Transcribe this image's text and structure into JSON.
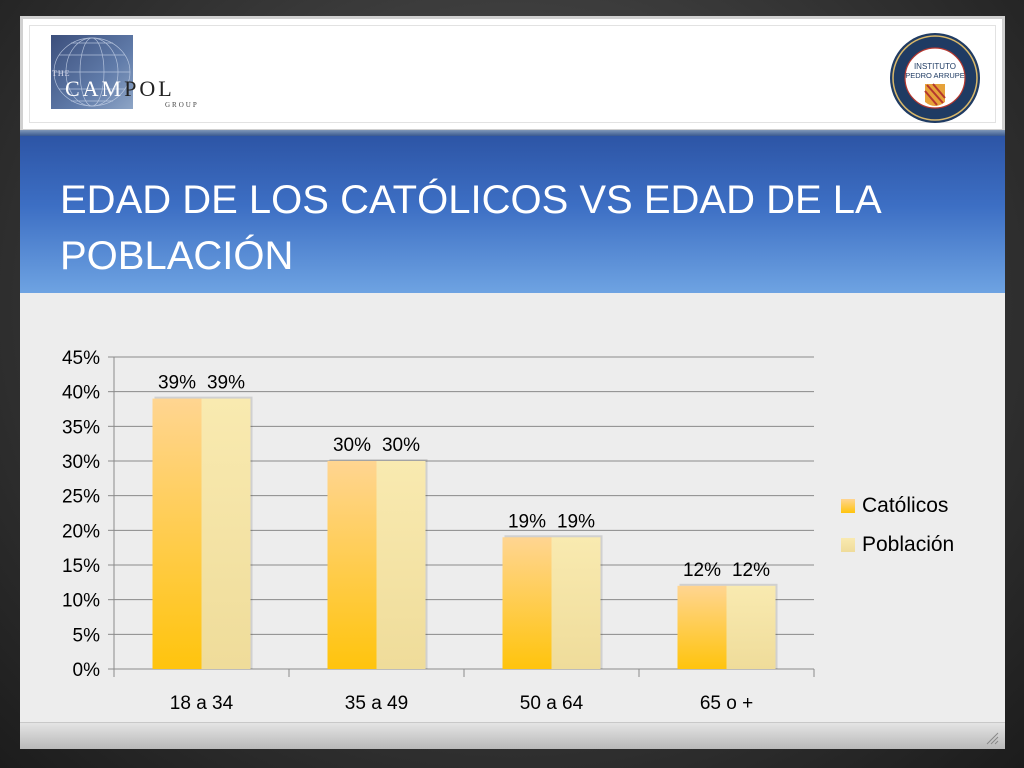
{
  "slide": {
    "title": "EDAD DE LOS CATÓLICOS VS EDAD DE LA POBLACIÓN"
  },
  "logos": {
    "left": {
      "text_the": "THE",
      "text_main_light": "CAM",
      "text_main_dark": "POL",
      "text_sub": "GROUP"
    },
    "right": {
      "line1": "INSTITUTO",
      "line2": "PEDRO ARRUPE",
      "ring_top": "CENTRO DE ESPIRITUALIDAD IGNACIANA",
      "ring_bottom": "IGNATIAN SPIRITUALITY CENTER",
      "inner": "CONCIENCIA Y TRANSFORMACIÓN SOCIAL"
    }
  },
  "colors": {
    "catolicos_top": "#ffd591",
    "catolicos_bottom": "#ffc40d",
    "poblacion_top": "#f9eab0",
    "poblacion_bottom": "#efdc9a",
    "gridline": "#8a8a8a",
    "title_band_top": "#2d55a6",
    "title_band_bottom": "#6ea3e2"
  },
  "chart_data": {
    "type": "bar",
    "categories": [
      "18 a 34",
      "35 a 49",
      "50 a 64",
      "65 o +"
    ],
    "series": [
      {
        "name": "Católicos",
        "values": [
          39,
          30,
          19,
          12
        ]
      },
      {
        "name": "Población",
        "values": [
          39,
          30,
          19,
          12
        ]
      }
    ],
    "data_labels": [
      [
        "39%",
        "30%",
        "19%",
        "12%"
      ],
      [
        "39%",
        "30%",
        "19%",
        "12%"
      ]
    ],
    "y_ticks": [
      "0%",
      "5%",
      "10%",
      "15%",
      "20%",
      "25%",
      "30%",
      "35%",
      "40%",
      "45%"
    ],
    "ylim": [
      0,
      45
    ],
    "unit": "%",
    "legend_position": "right",
    "grid": true
  }
}
